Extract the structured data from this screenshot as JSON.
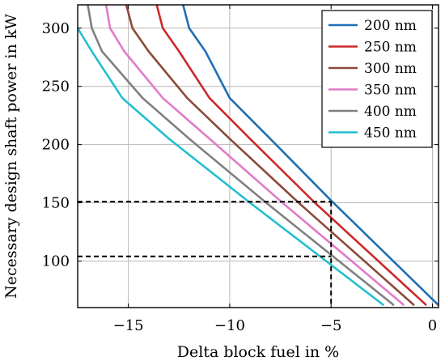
{
  "chart_data": {
    "type": "line",
    "title": "",
    "xlabel": "Delta block fuel in %",
    "ylabel": "Necessary design shaft power in kW",
    "xlim": [
      -17.5,
      0.3
    ],
    "ylim": [
      60,
      320
    ],
    "xticks": [
      -15,
      -10,
      -5,
      0
    ],
    "xtick_labels": [
      "−15",
      "−10",
      "−5",
      "0"
    ],
    "yticks": [
      100,
      150,
      200,
      250,
      300
    ],
    "ytick_labels": [
      "100",
      "150",
      "200",
      "250",
      "300"
    ],
    "grid": true,
    "legend_position": "top-right",
    "series": [
      {
        "name": "200 nm",
        "color": "#1f6fb4",
        "x": [
          0.3,
          -5,
          -8,
          -10,
          -11.2,
          -12,
          -12.3
        ],
        "y": [
          62,
          152,
          205,
          240,
          280,
          300,
          320
        ]
      },
      {
        "name": "250 nm",
        "color": "#cc2a2a",
        "x": [
          -0.3,
          -5.8,
          -9,
          -11,
          -12.5,
          -13.3,
          -13.6
        ],
        "y": [
          62,
          150,
          205,
          240,
          280,
          300,
          320
        ]
      },
      {
        "name": "300 nm",
        "color": "#8b4a3a",
        "x": [
          -0.9,
          -6.6,
          -10,
          -12.1,
          -14,
          -14.8,
          -15.1
        ],
        "y": [
          62,
          150,
          205,
          240,
          280,
          300,
          320
        ]
      },
      {
        "name": "350 nm",
        "color": "#e07bc9",
        "x": [
          -1.4,
          -7.4,
          -11,
          -13.3,
          -15.2,
          -15.9,
          -16.1
        ],
        "y": [
          62,
          150,
          205,
          240,
          280,
          300,
          320
        ]
      },
      {
        "name": "400 nm",
        "color": "#808080",
        "x": [
          -1.9,
          -8.2,
          -12,
          -14.3,
          -16.3,
          -16.8,
          -17
        ],
        "y": [
          62,
          150,
          205,
          240,
          280,
          300,
          320
        ]
      },
      {
        "name": "450 nm",
        "color": "#22bfcf",
        "x": [
          -2.4,
          -9,
          -13,
          -15.3,
          -16.8,
          -17.5
        ],
        "y": [
          62,
          150,
          205,
          240,
          280,
          300
        ]
      }
    ],
    "annotations": [
      {
        "type": "dashed-guide",
        "x": -5,
        "y": 151,
        "color": "#000000"
      },
      {
        "type": "dashed-guide",
        "x": -5,
        "y": 104,
        "color": "#000000"
      }
    ]
  }
}
